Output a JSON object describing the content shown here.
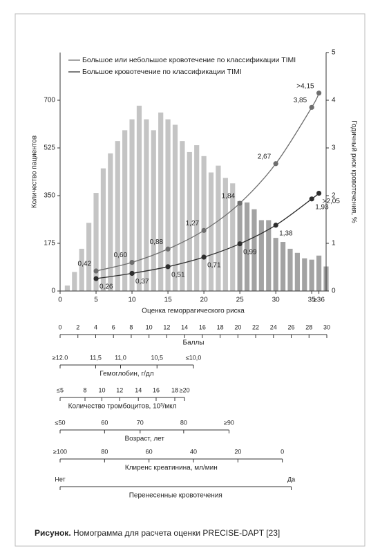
{
  "chart_data": {
    "type": "combo",
    "y_label": "Количество пациентов",
    "y2_label": "Годичный риск кровотечения, %",
    "x_label": "Оценка геморрагического риска",
    "xlim": [
      0,
      37
    ],
    "xticks": [
      0,
      5,
      10,
      15,
      20,
      25,
      30,
      35,
      {
        "value": 36,
        "label": "≥36"
      }
    ],
    "ylim": [
      0,
      875
    ],
    "yticks": [
      0,
      175,
      350,
      525,
      700
    ],
    "y2lim": [
      0,
      5
    ],
    "y2ticks": [
      0,
      1,
      2,
      3,
      4,
      5
    ],
    "legend": "upper left",
    "series": [
      {
        "type": "bar",
        "axis": "y",
        "x": [
          1,
          2,
          3,
          4,
          5,
          6,
          7,
          8,
          9,
          10,
          11,
          12,
          13,
          14,
          15,
          16,
          17,
          18,
          19,
          20,
          21,
          22,
          23,
          24,
          25,
          26,
          27,
          28,
          29,
          30,
          31,
          32,
          33,
          34,
          35,
          36,
          37
        ],
        "values": [
          20,
          70,
          155,
          250,
          360,
          450,
          505,
          550,
          590,
          630,
          680,
          630,
          590,
          655,
          630,
          610,
          550,
          510,
          535,
          495,
          435,
          460,
          415,
          395,
          330,
          325,
          300,
          260,
          260,
          195,
          180,
          155,
          140,
          120,
          115,
          130,
          90
        ],
        "colors": [
          "#c4c4c4",
          "#c4c4c4",
          "#c4c4c4",
          "#c4c4c4",
          "#c4c4c4",
          "#c4c4c4",
          "#c4c4c4",
          "#c4c4c4",
          "#c4c4c4",
          "#c4c4c4",
          "#c4c4c4",
          "#c4c4c4",
          "#c4c4c4",
          "#c4c4c4",
          "#c4c4c4",
          "#c4c4c4",
          "#c4c4c4",
          "#c4c4c4",
          "#c4c4c4",
          "#c4c4c4",
          "#c4c4c4",
          "#c4c4c4",
          "#c4c4c4",
          "#c4c4c4",
          "#a3a3a3",
          "#a3a3a3",
          "#a3a3a3",
          "#a3a3a3",
          "#a3a3a3",
          "#a3a3a3",
          "#a3a3a3",
          "#a3a3a3",
          "#a3a3a3",
          "#a3a3a3",
          "#a3a3a3",
          "#a3a3a3",
          "#a3a3a3"
        ]
      },
      {
        "type": "line",
        "axis": "y2",
        "name": "Большое или небольшое кровотечение по классификации TIMI",
        "color": "#6e6e6e",
        "x": [
          5,
          10,
          15,
          20,
          25,
          30,
          35,
          36
        ],
        "values": [
          0.42,
          0.6,
          0.88,
          1.27,
          1.84,
          2.67,
          3.85,
          4.15
        ],
        "value_labels": [
          "0,42",
          "0,60",
          "0,88",
          "1,27",
          "1,84",
          "2,67",
          "3,85",
          ">4,15"
        ]
      },
      {
        "type": "line",
        "axis": "y2",
        "name": "Большое кровотечение по классификации TIMI",
        "color": "#2e2e2e",
        "x": [
          5,
          10,
          15,
          20,
          25,
          30,
          35,
          36
        ],
        "values": [
          0.26,
          0.37,
          0.51,
          0.71,
          0.99,
          1.38,
          1.93,
          2.05
        ],
        "value_labels": [
          "0,26",
          "0,37",
          "0,51",
          "0,71",
          "0,99",
          "1,38",
          "1,93",
          ">2,05"
        ]
      }
    ]
  },
  "nomogram": {
    "points_scale": {
      "title": "Баллы",
      "ticks": [
        0,
        2,
        4,
        6,
        8,
        10,
        12,
        14,
        16,
        18,
        20,
        22,
        24,
        26,
        28,
        30
      ]
    },
    "scales": [
      {
        "title": "Гемоглобин, г/дл",
        "ticks": [
          {
            "points": 0,
            "label": "≥12.0"
          },
          {
            "points": 4,
            "label": "11,5"
          },
          {
            "points": 6.8,
            "label": "11,0"
          },
          {
            "points": 10.9,
            "label": "10,5"
          },
          {
            "points": 15,
            "label": "≤10,0"
          }
        ]
      },
      {
        "title": "Количество тромбоцитов, 10³/мкл",
        "ticks": [
          {
            "points": 0,
            "label": "≤5"
          },
          {
            "points": 2.8,
            "label": "8"
          },
          {
            "points": 4.7,
            "label": "10"
          },
          {
            "points": 6.7,
            "label": "12"
          },
          {
            "points": 8.8,
            "label": "14"
          },
          {
            "points": 10.8,
            "label": "16"
          },
          {
            "points": 12.9,
            "label": "18"
          },
          {
            "points": 14,
            "label": "≥20"
          }
        ]
      },
      {
        "title": "Возраст, лет",
        "ticks": [
          {
            "points": 0,
            "label": "≤50"
          },
          {
            "points": 5,
            "label": "60"
          },
          {
            "points": 9,
            "label": "70"
          },
          {
            "points": 13.9,
            "label": "80"
          },
          {
            "points": 19,
            "label": "≥90"
          }
        ]
      },
      {
        "title": "Клиренс креатинина, мл/мин",
        "ticks": [
          {
            "points": 0,
            "label": "≥100"
          },
          {
            "points": 5,
            "label": "80"
          },
          {
            "points": 10,
            "label": "60"
          },
          {
            "points": 15,
            "label": "40"
          },
          {
            "points": 20,
            "label": "20"
          },
          {
            "points": 25,
            "label": "0"
          }
        ]
      },
      {
        "title": "Перенесенные кровотечения",
        "ticks": [
          {
            "points": 0,
            "label": "Нет"
          },
          {
            "points": 26,
            "label": "Да"
          }
        ]
      }
    ]
  },
  "caption": {
    "label": "Рисунок.",
    "text": " Номограмма для расчета оценки PRECISE-DAPT [23]"
  }
}
